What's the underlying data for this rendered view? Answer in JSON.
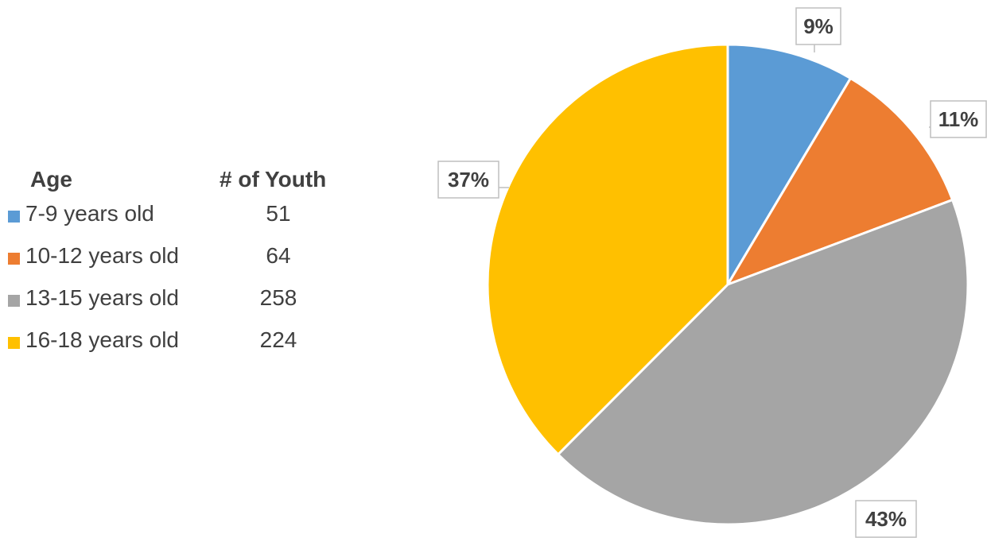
{
  "chart_data": {
    "type": "pie",
    "legend": {
      "header_category": "Age",
      "header_value": "# of Youth",
      "placement": "left"
    },
    "categories": [
      "7-9 years old",
      "10-12 years old",
      "13-15 years old",
      "16-18 years old"
    ],
    "values": [
      51,
      64,
      258,
      224
    ],
    "percent_labels": [
      "9%",
      "11%",
      "43%",
      "37%"
    ],
    "colors": [
      "#5B9BD5",
      "#ED7D31",
      "#A5A5A5",
      "#FFC000"
    ]
  }
}
